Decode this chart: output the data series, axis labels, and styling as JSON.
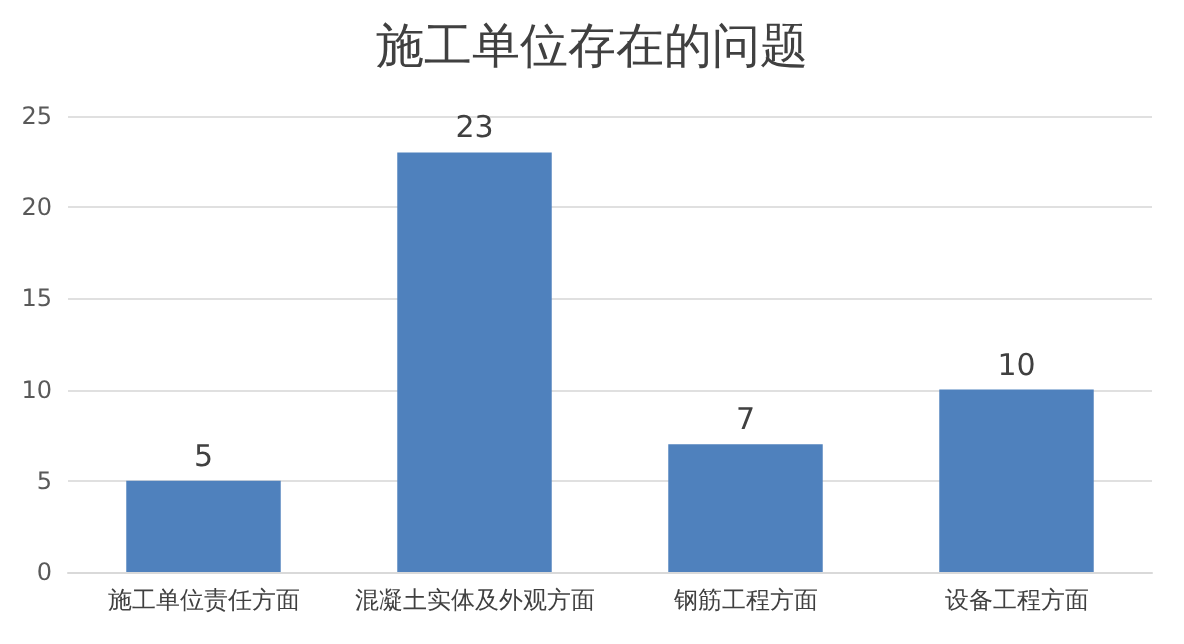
{
  "chart_data": {
    "type": "bar",
    "title": "施工单位存在的问题",
    "categories": [
      "施工单位责任方面",
      "混凝土实体及外观方面",
      "钢筋工程方面",
      "设备工程方面"
    ],
    "values": [
      5,
      23,
      7,
      10
    ],
    "color": "#4f81bd",
    "ylim": [
      0,
      25
    ],
    "yticks": [
      0,
      5,
      10,
      15,
      20,
      25
    ],
    "grid": "y",
    "data_labels": true
  }
}
